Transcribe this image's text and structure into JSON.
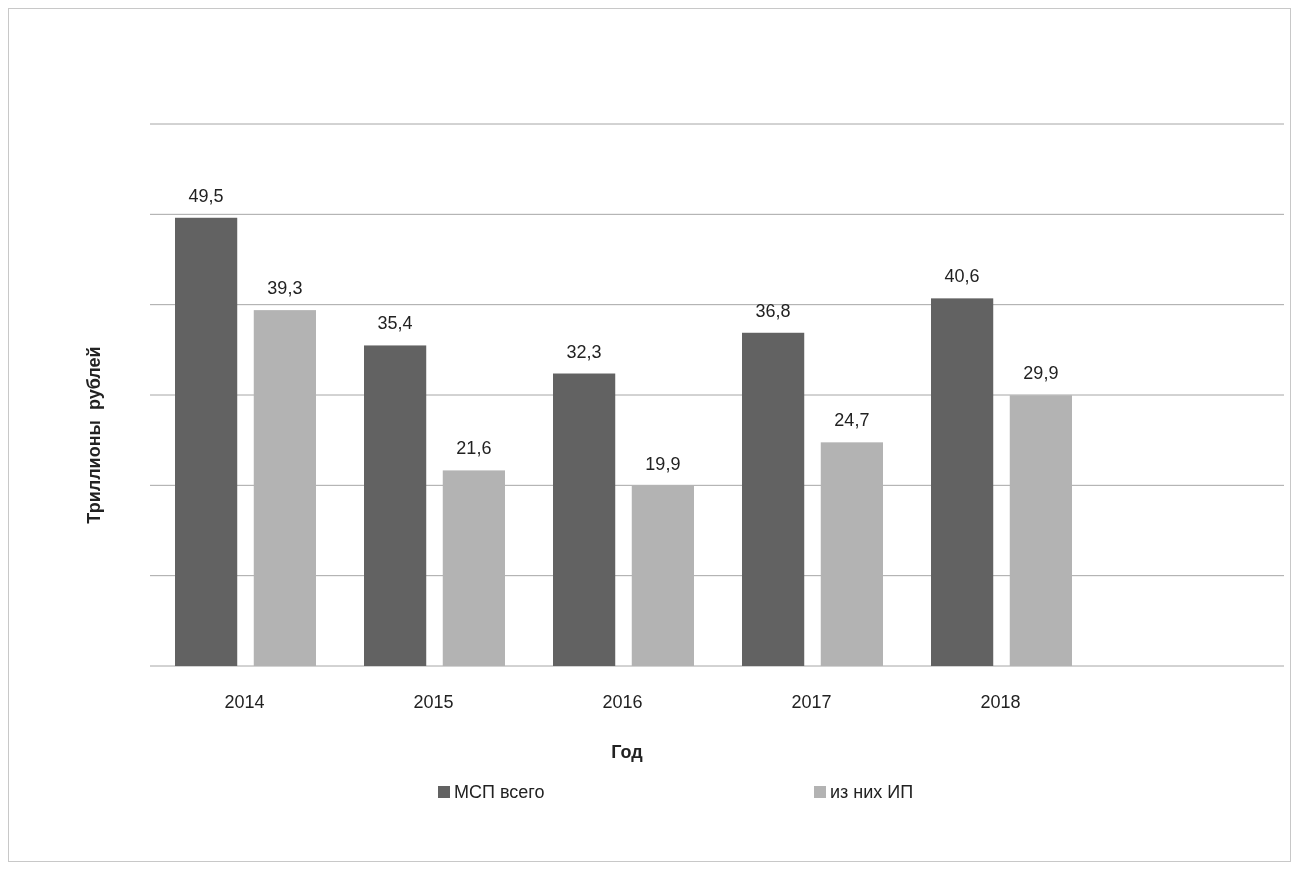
{
  "chart_data": {
    "type": "bar",
    "xlabel": "Год",
    "ylabel": "Триллионы  рублей",
    "categories": [
      "2014",
      "2015",
      "2016",
      "2017",
      "2018",
      null
    ],
    "series": [
      {
        "name": "МСП всего",
        "color": "#626262",
        "values": [
          49.5,
          35.4,
          32.3,
          36.8,
          40.6,
          null
        ],
        "value_labels": [
          "49,5",
          "35,4",
          "32,3",
          "36,8",
          "40,6",
          null
        ]
      },
      {
        "name": "из них ИП",
        "color": "#b3b3b3",
        "values": [
          39.3,
          21.6,
          19.9,
          24.7,
          29.9,
          null
        ],
        "value_labels": [
          "39,3",
          "21,6",
          "19,9",
          "24,7",
          "29,9",
          null
        ]
      }
    ],
    "grid": true,
    "legend": "bottom"
  }
}
